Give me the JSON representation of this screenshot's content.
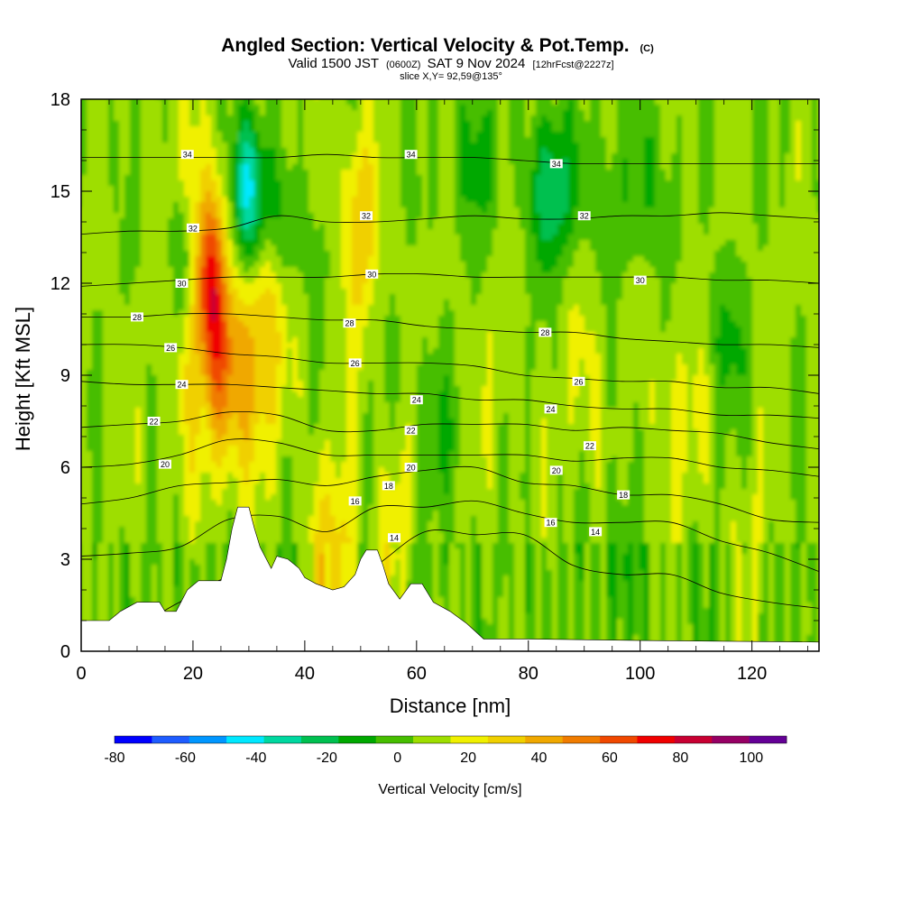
{
  "title": {
    "main": "Angled Section: Vertical Velocity & Pot.Temp.",
    "copyright": "(C)",
    "valid_prefix": "Valid 1500 JST",
    "valid_utc": "(0600Z)",
    "valid_date": "SAT 9 Nov 2024",
    "forecast": "[12hrFcst@2227z]",
    "slice": "slice X,Y= 92,59@135°"
  },
  "chart_data": {
    "type": "heatmap",
    "xlabel": "Distance [nm]",
    "ylabel": "Height [Kft MSL]",
    "xlim": [
      0,
      132
    ],
    "ylim": [
      0,
      18
    ],
    "x_ticks": [
      "0",
      "20",
      "40",
      "60",
      "80",
      "100",
      "120"
    ],
    "y_ticks": [
      "0",
      "3",
      "6",
      "9",
      "12",
      "15",
      "18"
    ],
    "colorbar": {
      "label": "Vertical Velocity [cm/s]",
      "tick_labels": [
        "-80",
        "-60",
        "-40",
        "-20",
        "0",
        "20",
        "40",
        "60",
        "80",
        "100"
      ],
      "range": [
        -80,
        110
      ],
      "step": 10,
      "colors": [
        "#0000ff",
        "#1e5cff",
        "#0096ff",
        "#00e8ff",
        "#00d8a0",
        "#00c050",
        "#00a800",
        "#46be00",
        "#9ede00",
        "#f0f000",
        "#f0d000",
        "#f0a800",
        "#f07c00",
        "#f04800",
        "#f00000",
        "#c80032",
        "#960064",
        "#640096"
      ]
    },
    "terrain": [
      [
        0,
        1.0
      ],
      [
        5,
        1.0
      ],
      [
        7,
        1.3
      ],
      [
        10,
        1.6
      ],
      [
        14,
        1.6
      ],
      [
        15,
        1.3
      ],
      [
        17,
        1.3
      ],
      [
        19,
        2.0
      ],
      [
        21,
        2.3
      ],
      [
        25,
        2.3
      ],
      [
        26,
        3.0
      ],
      [
        27,
        4.0
      ],
      [
        28,
        4.7
      ],
      [
        30,
        4.7
      ],
      [
        31,
        4.0
      ],
      [
        32,
        3.4
      ],
      [
        34,
        2.7
      ],
      [
        35,
        3.1
      ],
      [
        37,
        3.0
      ],
      [
        39,
        2.7
      ],
      [
        40,
        2.4
      ],
      [
        42,
        2.2
      ],
      [
        45,
        2.0
      ],
      [
        47,
        2.1
      ],
      [
        49,
        2.5
      ],
      [
        50,
        3.0
      ],
      [
        51,
        3.3
      ],
      [
        53,
        3.3
      ],
      [
        54,
        2.8
      ],
      [
        55,
        2.2
      ],
      [
        57,
        1.7
      ],
      [
        59,
        2.2
      ],
      [
        61,
        2.2
      ],
      [
        63,
        1.6
      ],
      [
        66,
        1.3
      ],
      [
        69,
        0.9
      ],
      [
        72,
        0.4
      ],
      [
        80,
        0.4
      ],
      [
        100,
        0.35
      ],
      [
        132,
        0.3
      ]
    ],
    "theta_contours": [
      {
        "label": "14",
        "levels": [
          0.9,
          0.8,
          1.6,
          2.4,
          2.1,
          1.8,
          2.8,
          3.9,
          3.8,
          3.8,
          2.8,
          2.5,
          2.5,
          1.9,
          1.6,
          1.4
        ]
      },
      {
        "label": "16",
        "levels": [
          3.1,
          3.2,
          3.4,
          4.3,
          4.4,
          3.9,
          4.7,
          4.7,
          4.9,
          4.5,
          4.2,
          4.2,
          4.2,
          3.6,
          3.2,
          2.6
        ]
      },
      {
        "label": "18",
        "levels": [
          4.8,
          5.0,
          5.4,
          5.5,
          5.6,
          5.4,
          5.7,
          5.9,
          6.0,
          5.5,
          5.4,
          5.1,
          5.1,
          4.8,
          4.3,
          4.2
        ]
      },
      {
        "label": "20",
        "levels": [
          6.0,
          6.1,
          6.4,
          6.9,
          6.8,
          6.4,
          6.4,
          6.4,
          6.4,
          6.4,
          6.2,
          6.3,
          6.3,
          6.0,
          5.9,
          5.7
        ]
      },
      {
        "label": "22",
        "levels": [
          7.3,
          7.4,
          7.5,
          7.8,
          7.7,
          7.2,
          7.2,
          7.4,
          7.4,
          7.4,
          7.2,
          7.3,
          7.2,
          7.1,
          6.8,
          6.6
        ]
      },
      {
        "label": "24",
        "levels": [
          8.8,
          8.7,
          8.7,
          8.7,
          8.6,
          8.5,
          8.4,
          8.4,
          8.2,
          8.2,
          8.0,
          7.9,
          7.9,
          7.7,
          7.7,
          7.6
        ]
      },
      {
        "label": "26",
        "levels": [
          10.0,
          10.0,
          9.9,
          9.7,
          9.6,
          9.4,
          9.4,
          9.4,
          9.3,
          9.0,
          8.9,
          8.8,
          8.8,
          8.6,
          8.6,
          8.4
        ]
      },
      {
        "label": "28",
        "levels": [
          10.9,
          10.9,
          11.0,
          11.0,
          10.9,
          10.8,
          10.8,
          10.6,
          10.5,
          10.4,
          10.4,
          10.2,
          10.1,
          10.0,
          10.0,
          9.9
        ]
      },
      {
        "label": "30",
        "levels": [
          11.9,
          12.0,
          12.1,
          12.2,
          12.2,
          12.2,
          12.3,
          12.3,
          12.2,
          12.2,
          12.2,
          12.2,
          12.2,
          12.1,
          12.1,
          12.0
        ]
      },
      {
        "label": "32",
        "levels": [
          13.6,
          13.7,
          13.7,
          13.8,
          14.2,
          14.0,
          14.0,
          14.1,
          14.2,
          14.1,
          14.1,
          14.2,
          14.2,
          14.3,
          14.2,
          14.1
        ]
      },
      {
        "label": "34",
        "levels": [
          16.1,
          16.1,
          16.1,
          16.1,
          16.1,
          16.2,
          16.1,
          16.1,
          16.1,
          16.0,
          15.9,
          15.9,
          15.9,
          15.9,
          15.9,
          15.9
        ]
      }
    ],
    "contour_labels": [
      {
        "text": "34",
        "x": 19,
        "y": 16.2
      },
      {
        "text": "34",
        "x": 59,
        "y": 16.2
      },
      {
        "text": "34",
        "x": 85,
        "y": 15.9
      },
      {
        "text": "32",
        "x": 20,
        "y": 13.8
      },
      {
        "text": "32",
        "x": 51,
        "y": 14.2
      },
      {
        "text": "32",
        "x": 90,
        "y": 14.2
      },
      {
        "text": "30",
        "x": 18,
        "y": 12.0
      },
      {
        "text": "30",
        "x": 52,
        "y": 12.3
      },
      {
        "text": "30",
        "x": 100,
        "y": 12.1
      },
      {
        "text": "28",
        "x": 10,
        "y": 10.9
      },
      {
        "text": "28",
        "x": 48,
        "y": 10.7
      },
      {
        "text": "28",
        "x": 83,
        "y": 10.4
      },
      {
        "text": "26",
        "x": 16,
        "y": 9.9
      },
      {
        "text": "26",
        "x": 49,
        "y": 9.4
      },
      {
        "text": "26",
        "x": 89,
        "y": 8.8
      },
      {
        "text": "24",
        "x": 18,
        "y": 8.7
      },
      {
        "text": "24",
        "x": 60,
        "y": 8.2
      },
      {
        "text": "24",
        "x": 84,
        "y": 7.9
      },
      {
        "text": "22",
        "x": 13,
        "y": 7.5
      },
      {
        "text": "22",
        "x": 59,
        "y": 7.2
      },
      {
        "text": "22",
        "x": 91,
        "y": 6.7
      },
      {
        "text": "20",
        "x": 15,
        "y": 6.1
      },
      {
        "text": "20",
        "x": 59,
        "y": 6.0
      },
      {
        "text": "20",
        "x": 85,
        "y": 5.9
      },
      {
        "text": "18",
        "x": 55,
        "y": 5.4
      },
      {
        "text": "18",
        "x": 97,
        "y": 5.1
      },
      {
        "text": "16",
        "x": 49,
        "y": 4.9
      },
      {
        "text": "16",
        "x": 84,
        "y": 4.2
      },
      {
        "text": "14",
        "x": 56,
        "y": 3.7
      },
      {
        "text": "14",
        "x": 92,
        "y": 3.9
      }
    ]
  }
}
